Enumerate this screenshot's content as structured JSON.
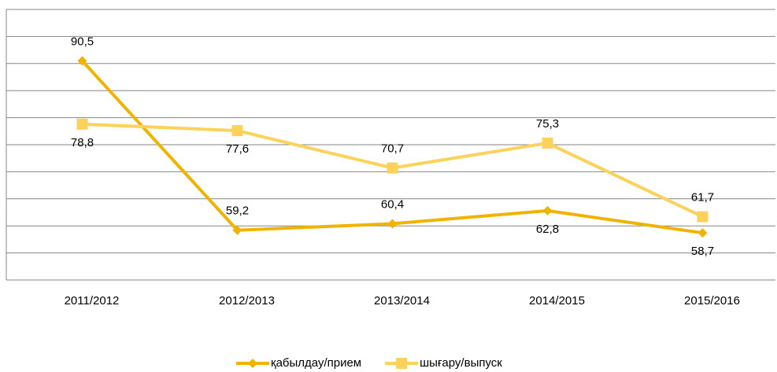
{
  "chart_data": {
    "type": "line",
    "categories": [
      "2011/2012",
      "2012/2013",
      "2013/2014",
      "2014/2015",
      "2015/2016"
    ],
    "series": [
      {
        "name": "қабылдау/прием",
        "color": "#f0b400",
        "marker": "diamond",
        "values": [
          90.5,
          59.2,
          60.4,
          62.8,
          58.7
        ],
        "value_labels": [
          "90,5",
          "59,2",
          "60,4",
          "62,8",
          "58,7"
        ]
      },
      {
        "name": "шығару/выпуск",
        "color": "#fcd25a",
        "marker": "square",
        "values": [
          78.8,
          77.6,
          70.7,
          75.3,
          61.7
        ],
        "value_labels": [
          "78,8",
          "77,6",
          "70,7",
          "75,3",
          "61,7"
        ]
      }
    ],
    "ylim": [
      50,
      100
    ],
    "yticks": [
      50,
      55,
      60,
      65,
      70,
      75,
      80,
      85,
      90,
      95,
      100
    ],
    "grid": true,
    "legend": "bottom"
  }
}
